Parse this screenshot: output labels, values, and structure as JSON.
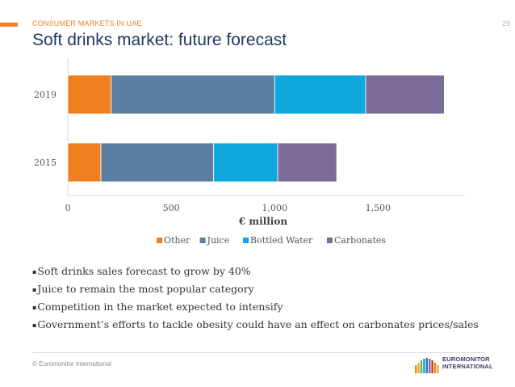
{
  "header": {
    "section": "CONSUMER MARKETS IN UAE",
    "page_number": "29",
    "title": "Soft drinks market: future forecast",
    "accent_color": "#f07f22"
  },
  "chart_data": {
    "type": "bar",
    "orientation": "horizontal",
    "stacked": true,
    "categories": [
      "2019",
      "2015"
    ],
    "series": [
      {
        "name": "Other",
        "color": "#f07f22",
        "values": [
          210,
          160
        ]
      },
      {
        "name": "Juice",
        "color": "#5b7fa0",
        "values": [
          790,
          545
        ]
      },
      {
        "name": "Bottled Water",
        "color": "#0fa8dc",
        "values": [
          440,
          310
        ]
      },
      {
        "name": "Carbonates",
        "color": "#7a6b99",
        "values": [
          380,
          285
        ]
      }
    ],
    "xlabel": "€ million",
    "xticks": [
      "0",
      "500",
      "1,000",
      "1,500"
    ],
    "xtick_values": [
      0,
      500,
      1000,
      1500
    ],
    "xlim": [
      0,
      1920
    ],
    "grid": false,
    "legend": "bottom"
  },
  "bullets": [
    "Soft drinks sales forecast to grow by 40%",
    "Juice to remain the most popular category",
    "Competition in the market expected to intensify",
    "Government’s efforts to tackle obesity could have an effect on carbonates prices/sales"
  ],
  "bullet_marker": "▪",
  "footer": {
    "copyright": "© Euromonitor International",
    "logo_text_line1": "EUROMONITOR",
    "logo_text_line2": "INTERNATIONAL"
  }
}
